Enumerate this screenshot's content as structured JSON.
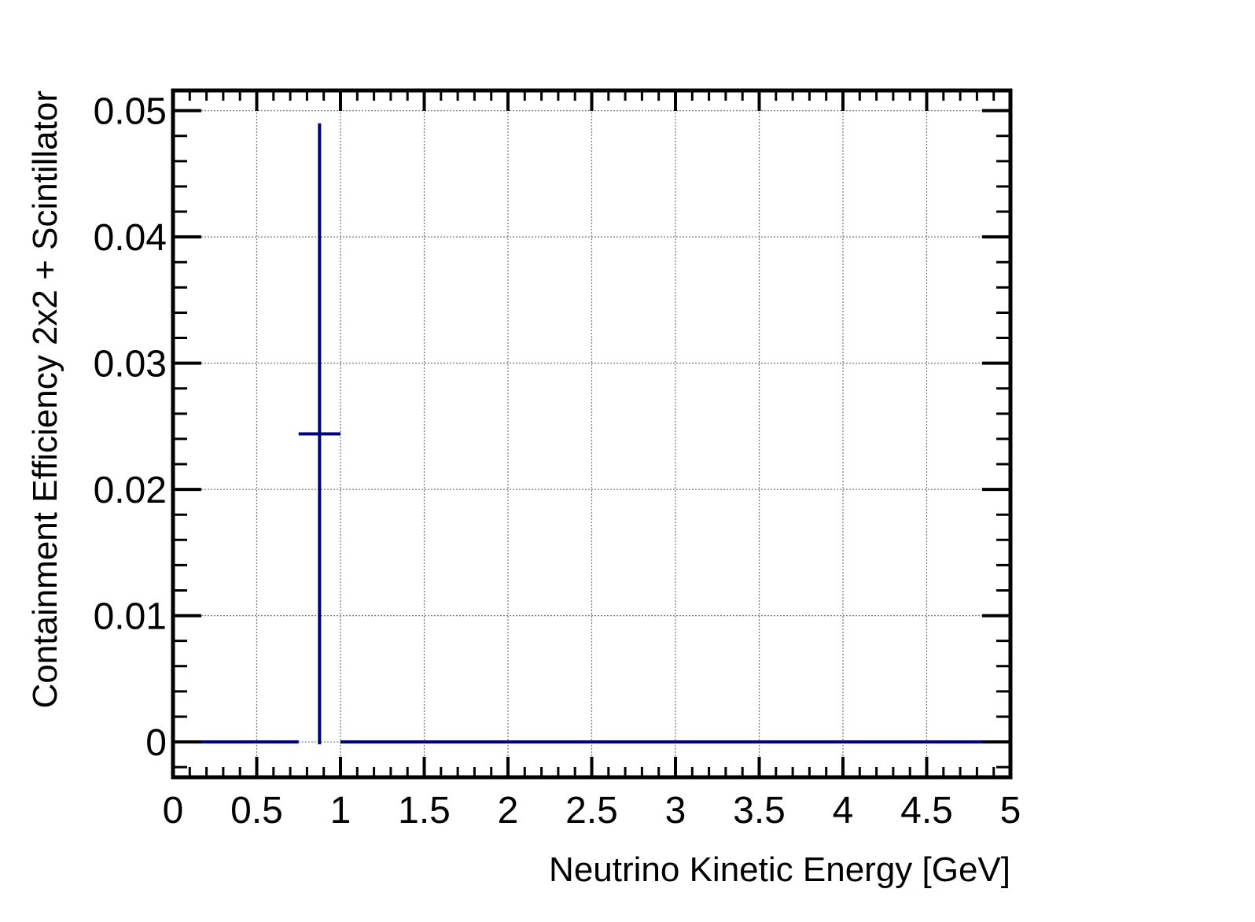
{
  "chart_data": {
    "type": "scatter",
    "title": "",
    "xlabel": "Neutrino Kinetic Energy [GeV]",
    "ylabel": "Containment Efficiency 2x2 + Scintillator",
    "xlim": [
      0,
      5
    ],
    "ylim": [
      -0.0028,
      0.0516
    ],
    "grid": true,
    "legend": "none",
    "series_color": "#000080",
    "x_ticks": [
      "0",
      "0.5",
      "1",
      "1.5",
      "2",
      "2.5",
      "3",
      "3.5",
      "4",
      "4.5",
      "5"
    ],
    "y_ticks": [
      "0",
      "0.01",
      "0.02",
      "0.03",
      "0.04",
      "0.05"
    ],
    "points": [
      {
        "x": 0.5,
        "x_low": 0.167,
        "x_high": 0.75,
        "y": 0,
        "y_err_low": 0,
        "y_err_high": 0
      },
      {
        "x": 0.875,
        "x_low": 0.75,
        "x_high": 1.0,
        "y": 0.0244,
        "y_err_low": 0.0244,
        "y_err_high": 0.0246
      },
      {
        "x": 1.5,
        "x_low": 1.0,
        "x_high": 2.0,
        "y": 0,
        "y_err_low": 0,
        "y_err_high": 0
      },
      {
        "x": 2.5,
        "x_low": 2.0,
        "x_high": 3.0,
        "y": 0,
        "y_err_low": 0,
        "y_err_high": 0
      },
      {
        "x": 3.5,
        "x_low": 3.0,
        "x_high": 4.0,
        "y": 0,
        "y_err_low": 0,
        "y_err_high": 0
      },
      {
        "x": 4.42,
        "x_low": 4.0,
        "x_high": 4.833,
        "y": 0,
        "y_err_low": 0,
        "y_err_high": 0
      }
    ]
  }
}
